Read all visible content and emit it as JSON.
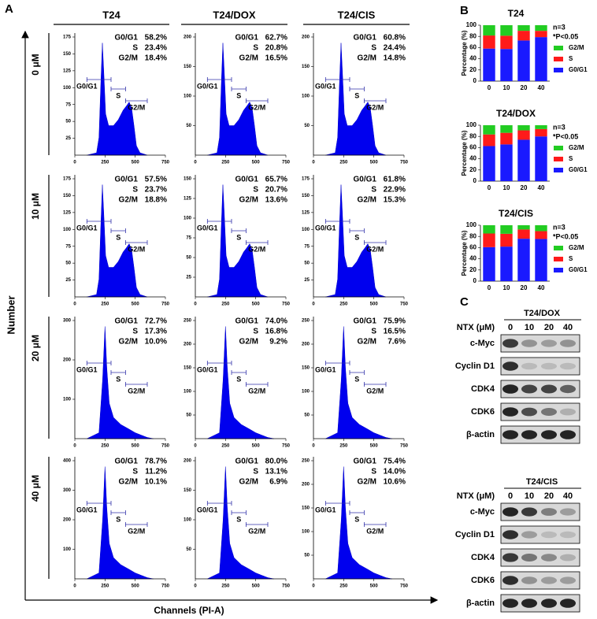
{
  "panel_a": {
    "label": "A",
    "columns": [
      "T24",
      "T24/DOX",
      "T24/CIS"
    ],
    "rows": [
      "0 μM",
      "10 μM",
      "20 μM",
      "40 μM"
    ],
    "y_axis_label": "Number",
    "x_axis_label": "Channels (PI-A)",
    "gate_labels": [
      "G0/G1",
      "S",
      "G2/M"
    ],
    "xlim": [
      0,
      750
    ],
    "xticks": [
      0,
      250,
      500,
      750
    ],
    "plots": [
      [
        {
          "stats": [
            "58.2%",
            "23.4%",
            "18.4%"
          ],
          "ylim": [
            0,
            175
          ],
          "yticks": [
            25,
            50,
            75,
            100,
            125,
            150,
            175
          ]
        },
        {
          "stats": [
            "62.7%",
            "20.8%",
            "16.5%"
          ],
          "ylim": [
            0,
            200
          ],
          "yticks": [
            50,
            100,
            150,
            200
          ]
        },
        {
          "stats": [
            "60.8%",
            "24.4%",
            "14.8%"
          ],
          "ylim": [
            0,
            200
          ],
          "yticks": [
            50,
            100,
            150,
            200
          ]
        }
      ],
      [
        {
          "stats": [
            "57.5%",
            "23.7%",
            "18.8%"
          ],
          "ylim": [
            0,
            175
          ],
          "yticks": [
            25,
            50,
            75,
            100,
            125,
            150,
            175
          ]
        },
        {
          "stats": [
            "65.7%",
            "20.7%",
            "13.6%"
          ],
          "ylim": [
            0,
            150
          ],
          "yticks": [
            25,
            50,
            75,
            100,
            125,
            150
          ]
        },
        {
          "stats": [
            "61.8%",
            "22.9%",
            "15.3%"
          ],
          "ylim": [
            0,
            175
          ],
          "yticks": [
            25,
            50,
            75,
            100,
            125,
            150,
            175
          ]
        }
      ],
      [
        {
          "stats": [
            "72.7%",
            "17.3%",
            "10.0%"
          ],
          "ylim": [
            0,
            300
          ],
          "yticks": [
            100,
            200,
            300
          ]
        },
        {
          "stats": [
            "74.0%",
            "16.8%",
            "9.2%"
          ],
          "ylim": [
            0,
            250
          ],
          "yticks": [
            50,
            100,
            150,
            200,
            250
          ]
        },
        {
          "stats": [
            "75.9%",
            "16.5%",
            "7.6%"
          ],
          "ylim": [
            0,
            250
          ],
          "yticks": [
            50,
            100,
            150,
            200,
            250
          ]
        }
      ],
      [
        {
          "stats": [
            "78.7%",
            "11.2%",
            "10.1%"
          ],
          "ylim": [
            0,
            400
          ],
          "yticks": [
            100,
            200,
            300,
            400
          ]
        },
        {
          "stats": [
            "80.0%",
            "13.1%",
            "6.9%"
          ],
          "ylim": [
            0,
            200
          ],
          "yticks": [
            50,
            100,
            150,
            200
          ]
        },
        {
          "stats": [
            "75.4%",
            "14.0%",
            "10.6%"
          ],
          "ylim": [
            0,
            250
          ],
          "yticks": [
            50,
            100,
            150,
            200,
            250
          ]
        }
      ]
    ]
  },
  "panel_b_label": "B",
  "chart_data": [
    {
      "type": "bar",
      "stacked": true,
      "title": "T24",
      "y_label": "Percentage (%)",
      "annotations": [
        "n=3",
        "*P<0.05"
      ],
      "categories": [
        "0",
        "10",
        "20",
        "40"
      ],
      "ylim": [
        0,
        100
      ],
      "yticks": [
        0,
        20,
        40,
        60,
        80,
        100
      ],
      "series": [
        {
          "name": "G0/G1",
          "color": "#1a1aff",
          "values": [
            58.2,
            57.5,
            72.7,
            78.7
          ]
        },
        {
          "name": "S",
          "color": "#ff1a1a",
          "values": [
            23.4,
            23.7,
            17.3,
            11.2
          ]
        },
        {
          "name": "G2/M",
          "color": "#22cc22",
          "values": [
            18.4,
            18.8,
            10.0,
            10.1
          ]
        }
      ]
    },
    {
      "type": "bar",
      "stacked": true,
      "title": "T24/DOX",
      "y_label": "Percentage (%)",
      "annotations": [
        "n=3",
        "*P<0.05"
      ],
      "categories": [
        "0",
        "10",
        "20",
        "40"
      ],
      "ylim": [
        0,
        100
      ],
      "yticks": [
        0,
        20,
        40,
        60,
        80,
        100
      ],
      "series": [
        {
          "name": "G0/G1",
          "color": "#1a1aff",
          "values": [
            62.7,
            65.7,
            74.0,
            80.0
          ]
        },
        {
          "name": "S",
          "color": "#ff1a1a",
          "values": [
            20.8,
            20.7,
            16.8,
            13.1
          ]
        },
        {
          "name": "G2/M",
          "color": "#22cc22",
          "values": [
            16.5,
            13.6,
            9.2,
            6.9
          ]
        }
      ]
    },
    {
      "type": "bar",
      "stacked": true,
      "title": "T24/CIS",
      "y_label": "Percentage (%)",
      "annotations": [
        "n=3",
        "*P<0.05"
      ],
      "categories": [
        "0",
        "10",
        "20",
        "40"
      ],
      "ylim": [
        0,
        100
      ],
      "yticks": [
        0,
        20,
        40,
        60,
        80,
        100
      ],
      "series": [
        {
          "name": "G0/G1",
          "color": "#1a1aff",
          "values": [
            60.8,
            61.8,
            75.9,
            75.4
          ]
        },
        {
          "name": "S",
          "color": "#ff1a1a",
          "values": [
            24.4,
            22.9,
            16.5,
            14.0
          ]
        },
        {
          "name": "G2/M",
          "color": "#22cc22",
          "values": [
            14.8,
            15.3,
            7.6,
            10.6
          ]
        }
      ]
    }
  ],
  "panel_c": {
    "label": "C",
    "blots": [
      {
        "title": "T24/DOX",
        "dose_label": "NTX (μM)",
        "doses": [
          "0",
          "10",
          "20",
          "40"
        ],
        "proteins": [
          "c-Myc",
          "Cyclin D1",
          "CDK4",
          "CDK6",
          "β-actin"
        ]
      },
      {
        "title": "T24/CIS",
        "dose_label": "NTX (μM)",
        "doses": [
          "0",
          "10",
          "20",
          "40"
        ],
        "proteins": [
          "c-Myc",
          "Cyclin D1",
          "CDK4",
          "CDK6",
          "β-actin"
        ]
      }
    ]
  }
}
